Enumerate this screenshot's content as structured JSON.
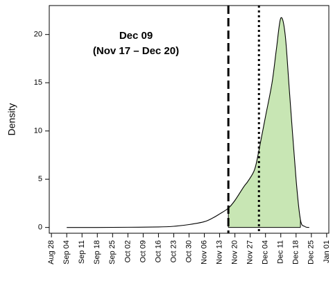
{
  "chart_data": {
    "type": "area",
    "ylabel": "Density",
    "ylim": [
      0,
      23
    ],
    "yticks": [
      0,
      5,
      10,
      15,
      20
    ],
    "x_axis_type": "date",
    "x_tick_labels": [
      "Aug 28",
      "Sep 04",
      "Sep 11",
      "Sep 18",
      "Sep 25",
      "Oct 02",
      "Oct 09",
      "Oct 16",
      "Oct 23",
      "Oct 30",
      "Nov 06",
      "Nov 13",
      "Nov 20",
      "Nov 27",
      "Dec 04",
      "Dec 11",
      "Dec 18",
      "Dec 25",
      "Jan 01"
    ],
    "annotation": {
      "line1": "Dec 09",
      "line2": "(Nov 17 – Dec 20)"
    },
    "dashed_line_x": "Nov 17",
    "dotted_line_x": "Dec 01",
    "shaded_interval": [
      "Nov 17",
      "Dec 20"
    ],
    "shade_color": "#c8e6b4",
    "density_curve": [
      {
        "x": "Sep 04",
        "y": 0.0
      },
      {
        "x": "Sep 18",
        "y": 0.0
      },
      {
        "x": "Oct 02",
        "y": 0.02
      },
      {
        "x": "Oct 16",
        "y": 0.05
      },
      {
        "x": "Oct 23",
        "y": 0.12
      },
      {
        "x": "Oct 30",
        "y": 0.3
      },
      {
        "x": "Nov 06",
        "y": 0.6
      },
      {
        "x": "Nov 10",
        "y": 1.0
      },
      {
        "x": "Nov 13",
        "y": 1.4
      },
      {
        "x": "Nov 17",
        "y": 2.0
      },
      {
        "x": "Nov 20",
        "y": 2.8
      },
      {
        "x": "Nov 24",
        "y": 4.2
      },
      {
        "x": "Nov 26",
        "y": 4.8
      },
      {
        "x": "Nov 29",
        "y": 6.0
      },
      {
        "x": "Dec 01",
        "y": 8.0
      },
      {
        "x": "Dec 04",
        "y": 11.5
      },
      {
        "x": "Dec 07",
        "y": 15.0
      },
      {
        "x": "Dec 09",
        "y": 18.5
      },
      {
        "x": "Dec 11",
        "y": 21.7
      },
      {
        "x": "Dec 13",
        "y": 20.0
      },
      {
        "x": "Dec 15",
        "y": 14.0
      },
      {
        "x": "Dec 18",
        "y": 5.0
      },
      {
        "x": "Dec 20",
        "y": 0.8
      },
      {
        "x": "Dec 22",
        "y": 0.1
      },
      {
        "x": "Dec 24",
        "y": 0.0
      }
    ]
  }
}
